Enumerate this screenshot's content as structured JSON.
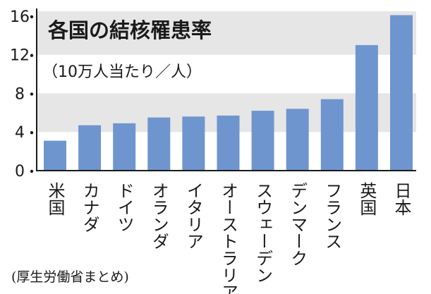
{
  "chart_data": {
    "type": "bar",
    "title": "各国の結核罹患率",
    "subtitle": "（10万人当たり／人）",
    "source": "(厚生労働省まとめ)",
    "categories": [
      "米国",
      "カナダ",
      "ドイツ",
      "オランダ",
      "イタリア",
      "オーストラリア",
      "スウェーデン",
      "デンマーク",
      "フランス",
      "英国",
      "日本"
    ],
    "values": [
      3.1,
      4.7,
      4.9,
      5.5,
      5.6,
      5.7,
      6.2,
      6.4,
      7.4,
      13.0,
      16.1
    ],
    "yticks": [
      0,
      4,
      8,
      12,
      16
    ],
    "ylim": [
      0,
      16.5
    ],
    "grid": "alternating horizontal bands",
    "bar_color": "#6f95cf",
    "band_color": "#e6e6e6"
  }
}
